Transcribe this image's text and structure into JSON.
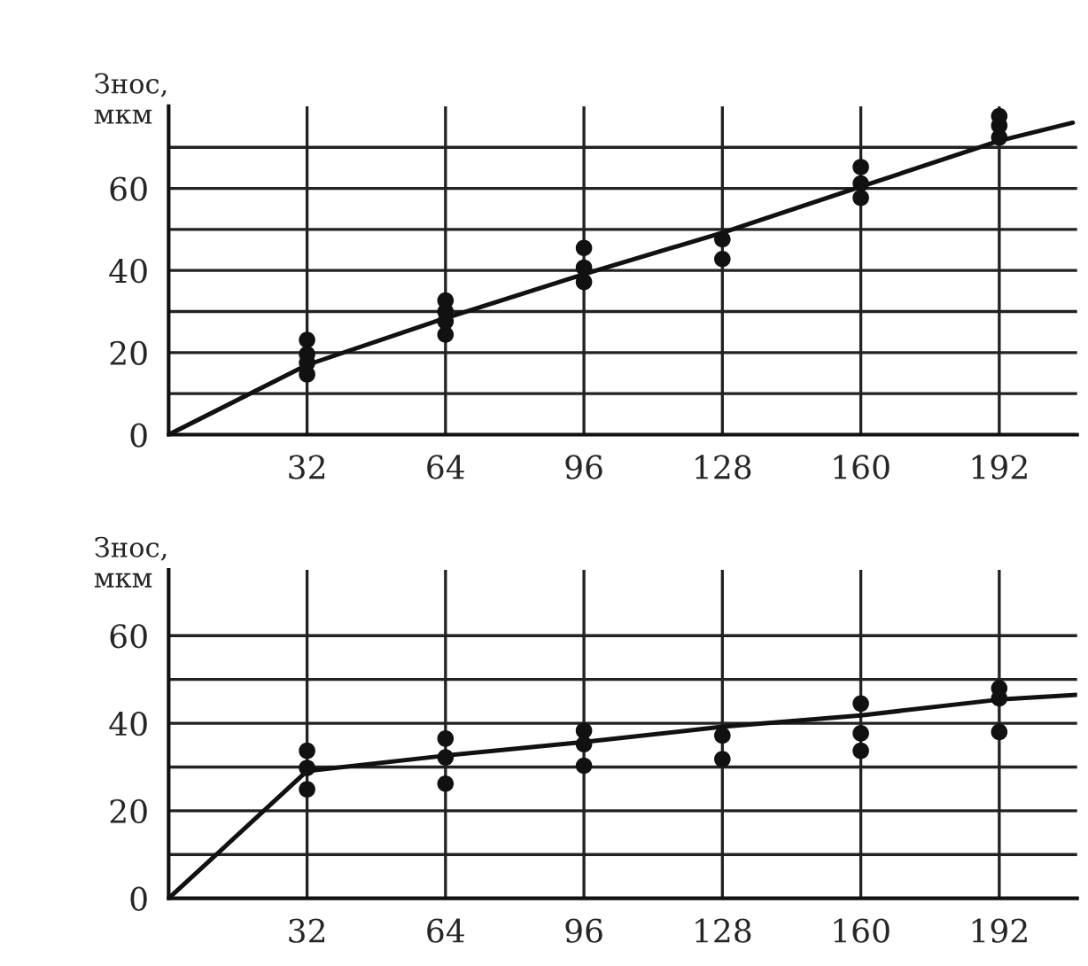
{
  "chart_data": [
    {
      "type": "scatter",
      "ylabel": "Знос,\nмкм",
      "xlim": [
        0,
        210
      ],
      "xticks": [
        32,
        64,
        96,
        128,
        160,
        192
      ],
      "ylim": [
        0,
        80
      ],
      "yticks": [
        0,
        {
          "value": 10,
          "label": null
        },
        20,
        {
          "value": 30,
          "label": null
        },
        40,
        {
          "value": 50,
          "label": null
        },
        60,
        {
          "value": 70,
          "label": null
        }
      ],
      "grid": true,
      "marker": "circle",
      "series": [
        {
          "color": "#111111",
          "x": [
            32,
            32,
            32,
            32,
            64,
            64,
            64,
            64,
            96,
            96,
            96,
            128,
            128,
            160,
            160,
            160,
            192,
            192,
            192
          ],
          "values": [
            23.1,
            19.6,
            17.5,
            14.7,
            32.7,
            30.0,
            27.6,
            24.4,
            45.5,
            40.7,
            37.2,
            47.6,
            42.8,
            65.2,
            61.2,
            57.7,
            77.6,
            75.3,
            72.4
          ]
        },
        {
          "type": "line",
          "color": "#111111",
          "marker": "none",
          "x": [
            0,
            32,
            64,
            96,
            128,
            160,
            192,
            209
          ],
          "values": [
            0,
            17,
            28.4,
            39.1,
            49.2,
            60.4,
            71.6,
            76
          ]
        }
      ]
    },
    {
      "type": "scatter",
      "ylabel": "Знос,\nмкм",
      "xlim": [
        0,
        210
      ],
      "xticks": [
        32,
        64,
        96,
        128,
        160,
        192
      ],
      "ylim": [
        0,
        75
      ],
      "yticks": [
        0,
        {
          "value": 10,
          "label": null
        },
        20,
        {
          "value": 30,
          "label": null
        },
        40,
        {
          "value": 50,
          "label": null
        },
        60
      ],
      "grid": true,
      "marker": "circle",
      "series": [
        {
          "color": "#111111",
          "x": [
            32,
            32,
            32,
            64,
            64,
            64,
            96,
            96,
            96,
            128,
            128,
            160,
            160,
            160,
            192,
            192,
            192
          ],
          "values": [
            33.7,
            29.8,
            24.9,
            36.5,
            32.2,
            26.2,
            38.3,
            35.2,
            30.3,
            37.2,
            31.8,
            44.5,
            37.7,
            33.7,
            48,
            45.7,
            38
          ]
        },
        {
          "type": "line",
          "color": "#111111",
          "marker": "none",
          "x": [
            0,
            32,
            64,
            96,
            128,
            160,
            192,
            210
          ],
          "values": [
            0,
            29.1,
            32.6,
            35.7,
            39.2,
            41.8,
            45.4,
            46.5
          ]
        }
      ]
    }
  ]
}
